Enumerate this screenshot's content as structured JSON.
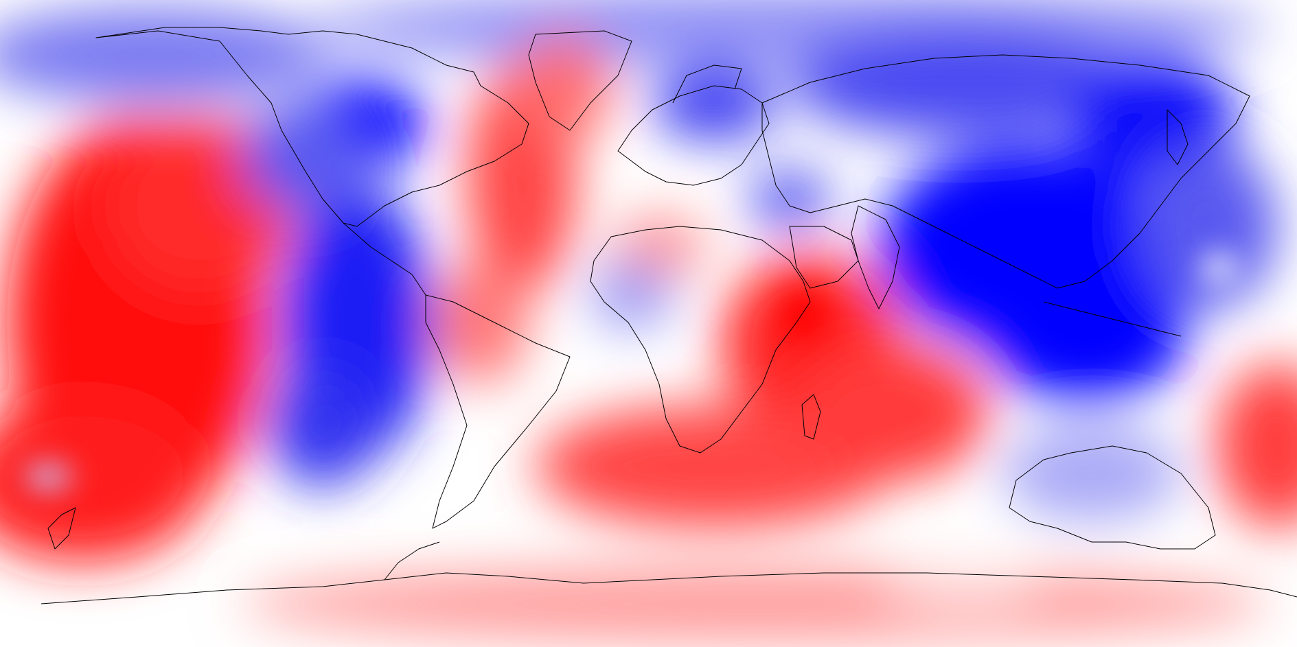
{
  "map": {
    "projection": "equirectangular",
    "region": "global",
    "lon_range": [
      -180,
      180
    ],
    "lat_range": [
      -90,
      90
    ],
    "coastlines": true,
    "graticule": false,
    "legend": false,
    "title": "",
    "colormap": {
      "type": "diverging",
      "negative_color": "#0000ff",
      "neutral_color": "#ffffff",
      "positive_color": "#ff0000",
      "levels": 12
    },
    "coastline_color": "#000000",
    "colors": {
      "deep_blue": "#0000ff",
      "mid_blue": "#6f6ff2",
      "light_blue": "#c8c8ff",
      "white": "#ffffff",
      "light_red": "#ffc8c8",
      "mid_red": "#ff7070",
      "deep_red": "#ff0000"
    }
  }
}
